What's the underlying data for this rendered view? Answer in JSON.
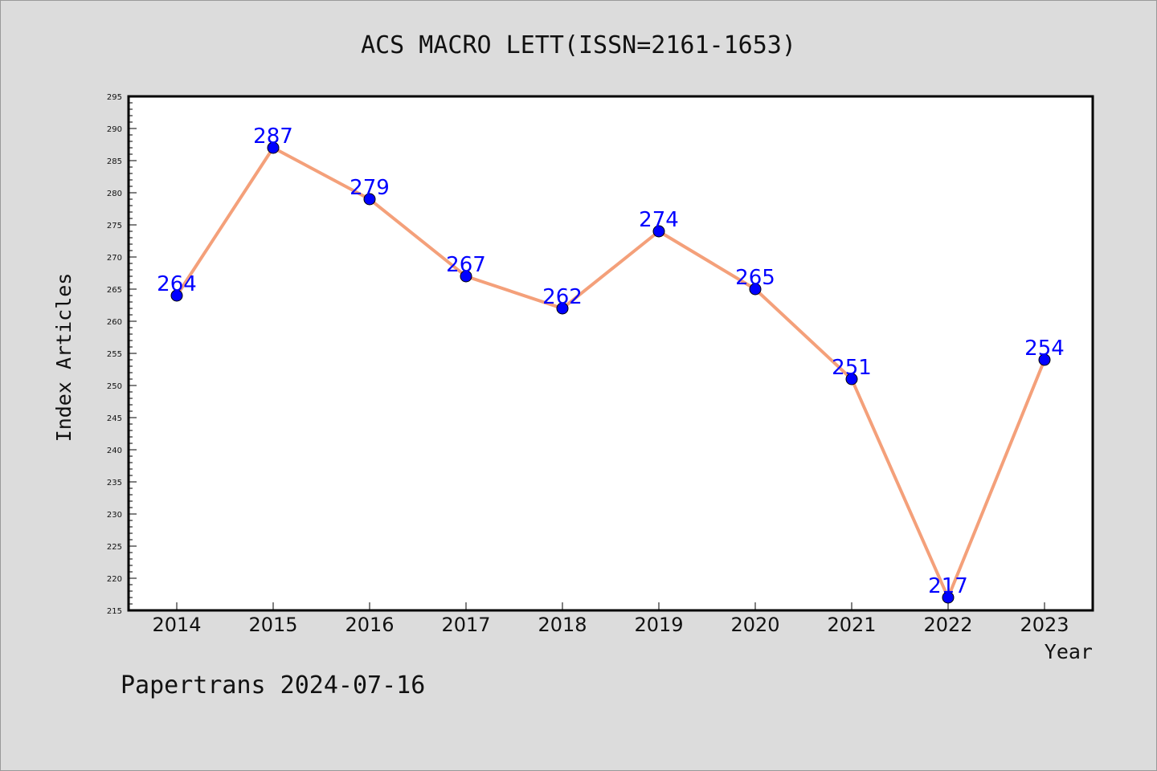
{
  "chart_data": {
    "type": "line",
    "title": "ACS MACRO LETT(ISSN=2161-1653)",
    "xlabel": "Year",
    "ylabel": "Index Articles",
    "categories": [
      "2014",
      "2015",
      "2016",
      "2017",
      "2018",
      "2019",
      "2020",
      "2021",
      "2022",
      "2023"
    ],
    "values": [
      264,
      287,
      279,
      267,
      262,
      274,
      265,
      251,
      217,
      254
    ],
    "ylim": [
      215,
      295
    ],
    "ytick_step": 5,
    "grid": false,
    "line_color": "#f4a07a",
    "marker_color": "#0000ff",
    "label_color": "#0000ff",
    "plot_background": "#ffffff",
    "background": "#dcdcdc"
  },
  "footer": {
    "watermark": "Papertrans 2024-07-16"
  }
}
